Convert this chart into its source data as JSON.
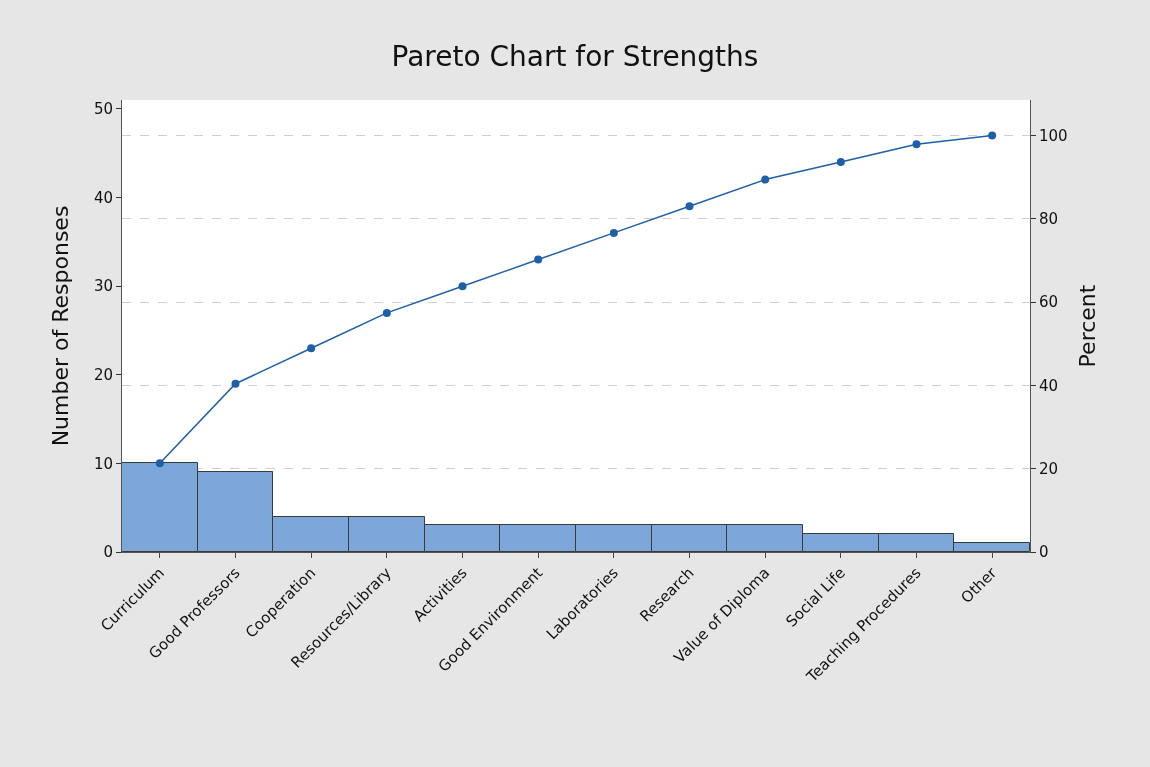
{
  "chart_data": {
    "type": "bar",
    "title": "Pareto Chart for Strengths",
    "ylabel": "Number of Responses",
    "y2label": "Percent",
    "categories": [
      "Curriculum",
      "Good Professors",
      "Cooperation",
      "Resources/Library",
      "Activities",
      "Good Environment",
      "Laboratories",
      "Research",
      "Value of Diploma",
      "Social Life",
      "Teaching Procedures",
      "Other"
    ],
    "series": [
      {
        "color": "#7da7d9",
        "values": [
          10,
          9,
          4,
          4,
          3,
          3,
          3,
          3,
          3,
          2,
          2,
          1
        ]
      },
      {
        "type": "line",
        "axis": "y2",
        "color": "#1f5fa8",
        "marker": "circle",
        "values": [
          21.3,
          40.4,
          48.9,
          57.4,
          63.8,
          70.2,
          76.6,
          83.0,
          89.4,
          93.6,
          97.9,
          100
        ]
      }
    ],
    "ylim": [
      0,
      51
    ],
    "yticks": [
      0,
      10,
      20,
      30,
      40,
      50
    ],
    "y2lim": [
      0,
      108.5
    ],
    "y2ticks": [
      0,
      20,
      40,
      60,
      80,
      100
    ],
    "grid": true
  }
}
